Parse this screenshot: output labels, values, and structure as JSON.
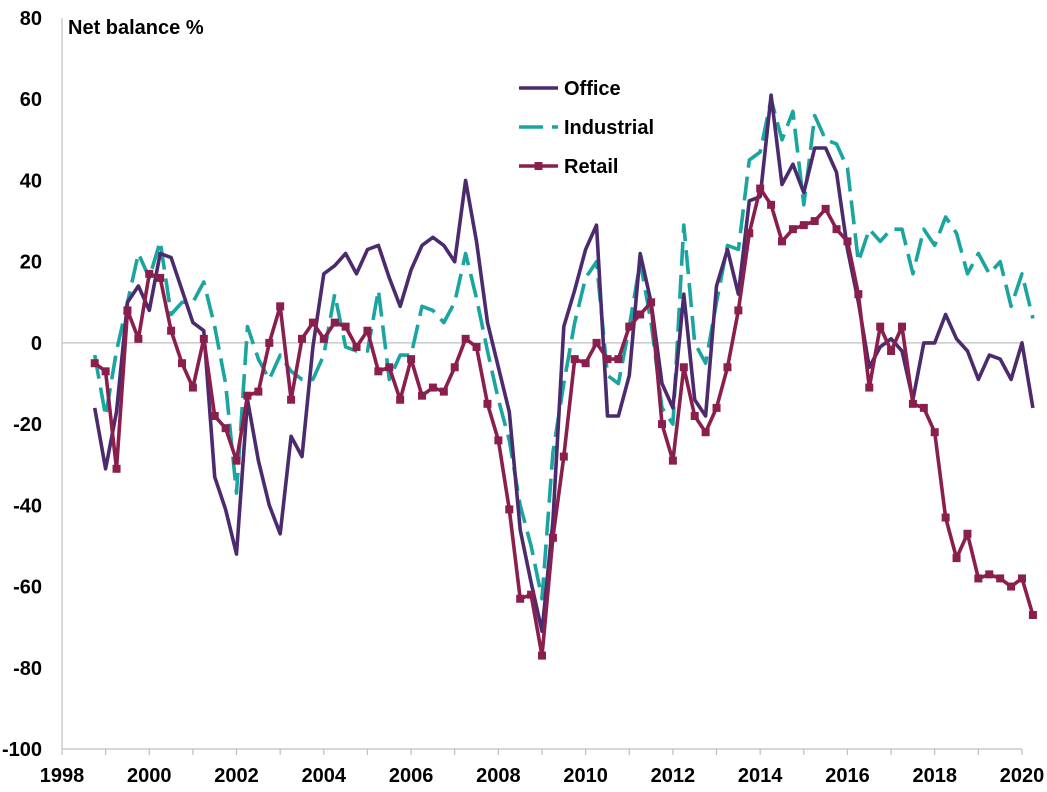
{
  "chart_data": {
    "type": "line",
    "ylabel": "Net balance %",
    "xlabel": "",
    "xlim": [
      1998,
      2020
    ],
    "ylim": [
      -100,
      80
    ],
    "x_ticks": [
      "1998",
      "2000",
      "2002",
      "2004",
      "2006",
      "2008",
      "2010",
      "2012",
      "2014",
      "2016",
      "2018",
      "2020"
    ],
    "y_ticks": [
      "80",
      "60",
      "40",
      "20",
      "0",
      "-20",
      "-40",
      "-60",
      "-80",
      "-100"
    ],
    "grid": false,
    "legend": "top-center",
    "series": [
      {
        "name": "Office",
        "color": "#4b2a6e",
        "style": "solid",
        "points": [
          [
            1998.75,
            -16
          ],
          [
            1999.0,
            -31
          ],
          [
            1999.25,
            -17
          ],
          [
            1999.5,
            10
          ],
          [
            1999.75,
            14
          ],
          [
            2000.0,
            8
          ],
          [
            2000.25,
            22
          ],
          [
            2000.5,
            21
          ],
          [
            2000.75,
            13
          ],
          [
            2001.0,
            5
          ],
          [
            2001.25,
            3
          ],
          [
            2001.5,
            -33
          ],
          [
            2001.75,
            -41
          ],
          [
            2002.0,
            -52
          ],
          [
            2002.25,
            -14
          ],
          [
            2002.5,
            -29
          ],
          [
            2002.75,
            -40
          ],
          [
            2003.0,
            -47
          ],
          [
            2003.25,
            -23
          ],
          [
            2003.5,
            -28
          ],
          [
            2003.75,
            -1
          ],
          [
            2004.0,
            17
          ],
          [
            2004.25,
            19
          ],
          [
            2004.5,
            22
          ],
          [
            2004.75,
            17
          ],
          [
            2005.0,
            23
          ],
          [
            2005.25,
            24
          ],
          [
            2005.5,
            16
          ],
          [
            2005.75,
            9
          ],
          [
            2006.0,
            18
          ],
          [
            2006.25,
            24
          ],
          [
            2006.5,
            26
          ],
          [
            2006.75,
            24
          ],
          [
            2007.0,
            20
          ],
          [
            2007.25,
            40
          ],
          [
            2007.5,
            25
          ],
          [
            2007.75,
            5
          ],
          [
            2008.0,
            -6
          ],
          [
            2008.25,
            -17
          ],
          [
            2008.5,
            -46
          ],
          [
            2008.75,
            -59
          ],
          [
            2009.0,
            -71
          ],
          [
            2009.25,
            -44
          ],
          [
            2009.5,
            4
          ],
          [
            2009.75,
            13
          ],
          [
            2010.0,
            23
          ],
          [
            2010.25,
            29
          ],
          [
            2010.5,
            -18
          ],
          [
            2010.75,
            -18
          ],
          [
            2011.0,
            -8
          ],
          [
            2011.25,
            22
          ],
          [
            2011.5,
            10
          ],
          [
            2011.75,
            -10
          ],
          [
            2012.0,
            -16
          ],
          [
            2012.25,
            12
          ],
          [
            2012.5,
            -14
          ],
          [
            2012.75,
            -18
          ],
          [
            2013.0,
            14
          ],
          [
            2013.25,
            23
          ],
          [
            2013.5,
            12
          ],
          [
            2013.75,
            35
          ],
          [
            2014.0,
            36
          ],
          [
            2014.25,
            61
          ],
          [
            2014.5,
            39
          ],
          [
            2014.75,
            44
          ],
          [
            2015.0,
            37
          ],
          [
            2015.25,
            48
          ],
          [
            2015.5,
            48
          ],
          [
            2015.75,
            42
          ],
          [
            2016.0,
            23
          ],
          [
            2016.25,
            10
          ],
          [
            2016.5,
            -6
          ],
          [
            2016.75,
            -1
          ],
          [
            2017.0,
            1
          ],
          [
            2017.25,
            -2
          ],
          [
            2017.5,
            -14
          ],
          [
            2017.75,
            0
          ],
          [
            2018.0,
            0
          ],
          [
            2018.25,
            7
          ],
          [
            2018.5,
            1
          ],
          [
            2018.75,
            -2
          ],
          [
            2019.0,
            -9
          ],
          [
            2019.25,
            -3
          ],
          [
            2019.5,
            -4
          ],
          [
            2019.75,
            -9
          ],
          [
            2020.0,
            0
          ],
          [
            2020.25,
            -16
          ]
        ]
      },
      {
        "name": "Industrial",
        "color": "#1aa5a0",
        "style": "dashed",
        "points": [
          [
            1998.75,
            -3
          ],
          [
            1999.0,
            -18
          ],
          [
            1999.25,
            -2
          ],
          [
            1999.5,
            10
          ],
          [
            1999.75,
            22
          ],
          [
            2000.0,
            16
          ],
          [
            2000.25,
            25
          ],
          [
            2000.5,
            7
          ],
          [
            2000.75,
            10
          ],
          [
            2001.0,
            10
          ],
          [
            2001.25,
            15
          ],
          [
            2001.5,
            4
          ],
          [
            2001.75,
            -10
          ],
          [
            2002.0,
            -37
          ],
          [
            2002.25,
            4
          ],
          [
            2002.5,
            -4
          ],
          [
            2002.75,
            -9
          ],
          [
            2003.0,
            -3
          ],
          [
            2003.25,
            -7
          ],
          [
            2003.5,
            -9
          ],
          [
            2003.75,
            -9
          ],
          [
            2004.0,
            -3
          ],
          [
            2004.25,
            12
          ],
          [
            2004.5,
            -1
          ],
          [
            2004.75,
            -2
          ],
          [
            2005.0,
            -2
          ],
          [
            2005.25,
            13
          ],
          [
            2005.5,
            -9
          ],
          [
            2005.75,
            -3
          ],
          [
            2006.0,
            -3
          ],
          [
            2006.25,
            9
          ],
          [
            2006.5,
            8
          ],
          [
            2006.75,
            5
          ],
          [
            2007.0,
            10
          ],
          [
            2007.25,
            22
          ],
          [
            2007.5,
            11
          ],
          [
            2007.75,
            -2
          ],
          [
            2008.0,
            -14
          ],
          [
            2008.25,
            -24
          ],
          [
            2008.5,
            -40
          ],
          [
            2008.75,
            -50
          ],
          [
            2009.0,
            -63
          ],
          [
            2009.25,
            -27
          ],
          [
            2009.5,
            -10
          ],
          [
            2009.75,
            5
          ],
          [
            2010.0,
            16
          ],
          [
            2010.25,
            20
          ],
          [
            2010.5,
            -8
          ],
          [
            2010.75,
            -10
          ],
          [
            2011.0,
            4
          ],
          [
            2011.25,
            20
          ],
          [
            2011.5,
            5
          ],
          [
            2011.75,
            -16
          ],
          [
            2012.0,
            -20
          ],
          [
            2012.25,
            29
          ],
          [
            2012.5,
            0
          ],
          [
            2012.75,
            -5
          ],
          [
            2013.0,
            10
          ],
          [
            2013.25,
            24
          ],
          [
            2013.5,
            23
          ],
          [
            2013.75,
            45
          ],
          [
            2014.0,
            47
          ],
          [
            2014.25,
            60
          ],
          [
            2014.5,
            50
          ],
          [
            2014.75,
            57
          ],
          [
            2015.0,
            34
          ],
          [
            2015.25,
            56
          ],
          [
            2015.5,
            50
          ],
          [
            2015.75,
            49
          ],
          [
            2016.0,
            43
          ],
          [
            2016.25,
            20
          ],
          [
            2016.5,
            28
          ],
          [
            2016.75,
            25
          ],
          [
            2017.0,
            28
          ],
          [
            2017.25,
            28
          ],
          [
            2017.5,
            17
          ],
          [
            2017.75,
            28
          ],
          [
            2018.0,
            24
          ],
          [
            2018.25,
            31
          ],
          [
            2018.5,
            27
          ],
          [
            2018.75,
            17
          ],
          [
            2019.0,
            22
          ],
          [
            2019.25,
            17
          ],
          [
            2019.5,
            20
          ],
          [
            2019.75,
            9
          ],
          [
            2020.0,
            17
          ],
          [
            2020.25,
            6
          ]
        ]
      },
      {
        "name": "Retail",
        "color": "#8a1f4e",
        "style": "solid-markers",
        "points": [
          [
            1998.75,
            -5
          ],
          [
            1999.0,
            -7
          ],
          [
            1999.25,
            -31
          ],
          [
            1999.5,
            8
          ],
          [
            1999.75,
            1
          ],
          [
            2000.0,
            17
          ],
          [
            2000.25,
            16
          ],
          [
            2000.5,
            3
          ],
          [
            2000.75,
            -5
          ],
          [
            2001.0,
            -11
          ],
          [
            2001.25,
            1
          ],
          [
            2001.5,
            -18
          ],
          [
            2001.75,
            -21
          ],
          [
            2002.0,
            -29
          ],
          [
            2002.25,
            -13
          ],
          [
            2002.5,
            -12
          ],
          [
            2002.75,
            0
          ],
          [
            2003.0,
            9
          ],
          [
            2003.25,
            -14
          ],
          [
            2003.5,
            1
          ],
          [
            2003.75,
            5
          ],
          [
            2004.0,
            1
          ],
          [
            2004.25,
            5
          ],
          [
            2004.5,
            4
          ],
          [
            2004.75,
            -1
          ],
          [
            2005.0,
            3
          ],
          [
            2005.25,
            -7
          ],
          [
            2005.5,
            -6
          ],
          [
            2005.75,
            -14
          ],
          [
            2006.0,
            -4
          ],
          [
            2006.25,
            -13
          ],
          [
            2006.5,
            -11
          ],
          [
            2006.75,
            -12
          ],
          [
            2007.0,
            -6
          ],
          [
            2007.25,
            1
          ],
          [
            2007.5,
            -1
          ],
          [
            2007.75,
            -15
          ],
          [
            2008.0,
            -24
          ],
          [
            2008.25,
            -41
          ],
          [
            2008.5,
            -63
          ],
          [
            2008.75,
            -62
          ],
          [
            2009.0,
            -77
          ],
          [
            2009.25,
            -48
          ],
          [
            2009.5,
            -28
          ],
          [
            2009.75,
            -4
          ],
          [
            2010.0,
            -5
          ],
          [
            2010.25,
            0
          ],
          [
            2010.5,
            -4
          ],
          [
            2010.75,
            -4
          ],
          [
            2011.0,
            4
          ],
          [
            2011.25,
            7
          ],
          [
            2011.5,
            10
          ],
          [
            2011.75,
            -20
          ],
          [
            2012.0,
            -29
          ],
          [
            2012.25,
            -6
          ],
          [
            2012.5,
            -18
          ],
          [
            2012.75,
            -22
          ],
          [
            2013.0,
            -16
          ],
          [
            2013.25,
            -6
          ],
          [
            2013.5,
            8
          ],
          [
            2013.75,
            27
          ],
          [
            2014.0,
            38
          ],
          [
            2014.25,
            34
          ],
          [
            2014.5,
            25
          ],
          [
            2014.75,
            28
          ],
          [
            2015.0,
            29
          ],
          [
            2015.25,
            30
          ],
          [
            2015.5,
            33
          ],
          [
            2015.75,
            28
          ],
          [
            2016.0,
            25
          ],
          [
            2016.25,
            12
          ],
          [
            2016.5,
            -11
          ],
          [
            2016.75,
            4
          ],
          [
            2017.0,
            -2
          ],
          [
            2017.25,
            4
          ],
          [
            2017.5,
            -15
          ],
          [
            2017.75,
            -16
          ],
          [
            2018.0,
            -22
          ],
          [
            2018.25,
            -43
          ],
          [
            2018.5,
            -53
          ],
          [
            2018.75,
            -47
          ],
          [
            2019.0,
            -58
          ],
          [
            2019.25,
            -57
          ],
          [
            2019.5,
            -58
          ],
          [
            2019.75,
            -60
          ],
          [
            2020.0,
            -58
          ],
          [
            2020.25,
            -67
          ]
        ]
      }
    ]
  }
}
